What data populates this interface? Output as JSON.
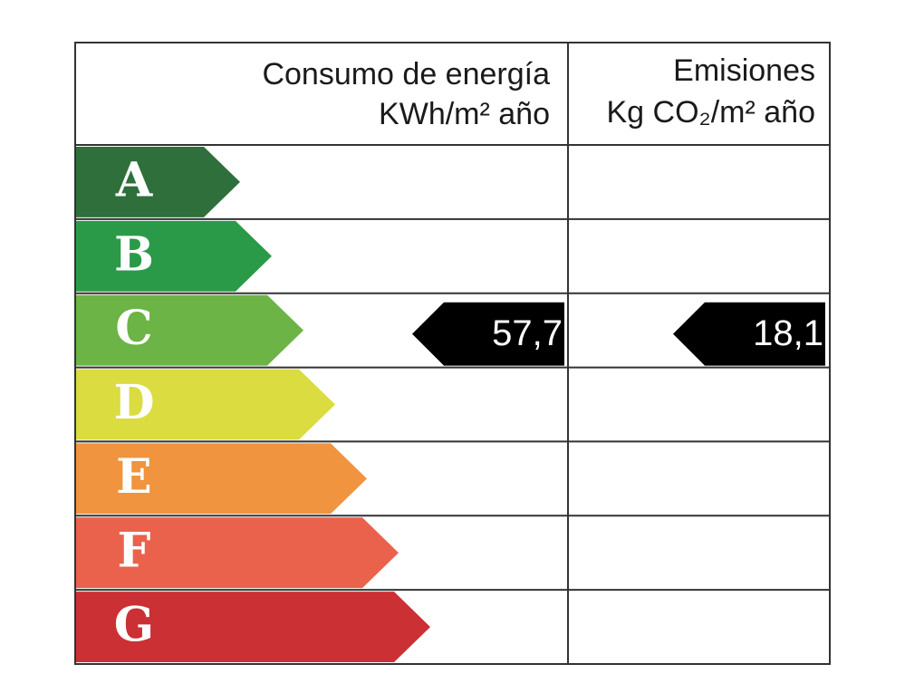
{
  "header": {
    "consumption": {
      "title": "Consumo de energía",
      "unit": "KWh/m² año"
    },
    "emissions": {
      "title": "Emisiones",
      "unit": "Kg CO₂/m² año"
    }
  },
  "classes": [
    {
      "letter": "A",
      "color": "#2e6f3b"
    },
    {
      "letter": "B",
      "color": "#2b9a48"
    },
    {
      "letter": "C",
      "color": "#6bb445"
    },
    {
      "letter": "D",
      "color": "#dadc3f"
    },
    {
      "letter": "E",
      "color": "#f0943f"
    },
    {
      "letter": "F",
      "color": "#ea624c"
    },
    {
      "letter": "G",
      "color": "#cb3034"
    }
  ],
  "consumption": {
    "value": "57,7",
    "rating": "C"
  },
  "emissions": {
    "value": "18,1",
    "rating": "C"
  }
}
